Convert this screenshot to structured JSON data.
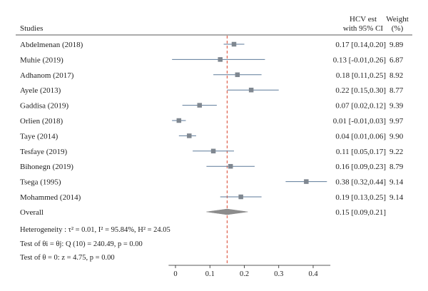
{
  "chart_data": {
    "type": "forest",
    "header": {
      "studies": "Studies",
      "estimate_line1": "HCV est",
      "estimate_line2": "with 95% CI",
      "weight_line1": "Weight",
      "weight_line2": "(%)"
    },
    "studies": [
      {
        "name": "Abdelmenan (2018)",
        "est": 0.17,
        "lo": 0.14,
        "hi": 0.2,
        "weight": 9.89,
        "ci_text": "0.17 [0.14,0.20]",
        "weight_text": "9.89"
      },
      {
        "name": "Muhie (2019)",
        "est": 0.13,
        "lo": -0.01,
        "hi": 0.26,
        "weight": 6.87,
        "ci_text": "0.13 [-0.01,0.26]",
        "weight_text": "6.87"
      },
      {
        "name": "Adhanom (2017)",
        "est": 0.18,
        "lo": 0.11,
        "hi": 0.25,
        "weight": 8.92,
        "ci_text": "0.18 [0.11,0.25]",
        "weight_text": "8.92"
      },
      {
        "name": "Ayele (2013)",
        "est": 0.22,
        "lo": 0.15,
        "hi": 0.3,
        "weight": 8.77,
        "ci_text": "0.22 [0.15,0.30]",
        "weight_text": "8.77"
      },
      {
        "name": "Gaddisa (2019)",
        "est": 0.07,
        "lo": 0.02,
        "hi": 0.12,
        "weight": 9.39,
        "ci_text": "0.07 [0.02,0.12]",
        "weight_text": "9.39"
      },
      {
        "name": "Orlien (2018)",
        "est": 0.01,
        "lo": -0.01,
        "hi": 0.03,
        "weight": 9.97,
        "ci_text": "0.01 [-0.01,0.03]",
        "weight_text": "9.97"
      },
      {
        "name": "Taye (2014)",
        "est": 0.04,
        "lo": 0.01,
        "hi": 0.06,
        "weight": 9.9,
        "ci_text": "0.04 [0.01,0.06]",
        "weight_text": "9.90"
      },
      {
        "name": "Tesfaye (2019)",
        "est": 0.11,
        "lo": 0.05,
        "hi": 0.17,
        "weight": 9.22,
        "ci_text": "0.11 [0.05,0.17]",
        "weight_text": "9.22"
      },
      {
        "name": "Bihonegn (2019)",
        "est": 0.16,
        "lo": 0.09,
        "hi": 0.23,
        "weight": 8.79,
        "ci_text": "0.16 [0.09,0.23]",
        "weight_text": "8.79"
      },
      {
        "name": "Tsega (1995)",
        "est": 0.38,
        "lo": 0.32,
        "hi": 0.44,
        "weight": 9.14,
        "ci_text": "0.38 [0.32,0.44]",
        "weight_text": "9.14"
      },
      {
        "name": "Mohammed (2014)",
        "est": 0.19,
        "lo": 0.13,
        "hi": 0.25,
        "weight": 9.14,
        "ci_text": "0.19 [0.13,0.25]",
        "weight_text": "9.14"
      }
    ],
    "overall": {
      "label": "Overall",
      "est": 0.15,
      "lo": 0.09,
      "hi": 0.21,
      "ci_text": "0.15 [0.09,0.21]"
    },
    "stats": {
      "heterogeneity": "Heterogeneity : τ² = 0.01, I² = 95.84%, H² = 24.05",
      "test_equal": "Test of θi = θj: Q (10) = 240.49, p = 0.00",
      "test_zero": "Test of θ = 0: z = 4.75, p = 0.00"
    },
    "x_ticks": [
      0,
      0.1,
      0.2,
      0.3,
      0.4
    ],
    "x_tick_labels": [
      "0",
      "0.1",
      "0.2",
      "0.3",
      "0.4"
    ],
    "xlim": [
      -0.02,
      0.45
    ],
    "reference_line": 0.15,
    "colors": {
      "marker": "#7f8790",
      "ci_line": "#5d7a99",
      "diamond": "#8c8c8c",
      "ref_line": "#d9462f",
      "text": "#222222"
    }
  }
}
